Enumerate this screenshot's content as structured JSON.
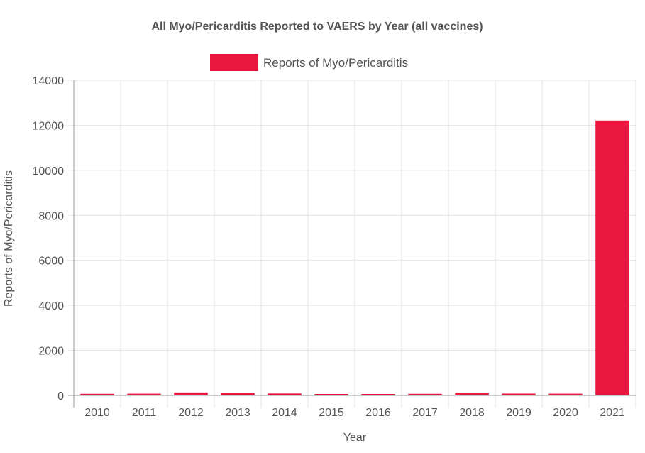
{
  "chart_data": {
    "type": "bar",
    "title": "All Myo/Pericarditis Reported to VAERS by Year (all vaccines)",
    "xlabel": "Year",
    "ylabel": "Reports of Myo/Pericarditis",
    "categories": [
      "2010",
      "2011",
      "2012",
      "2013",
      "2014",
      "2015",
      "2016",
      "2017",
      "2018",
      "2019",
      "2020",
      "2021"
    ],
    "series": [
      {
        "name": "Reports of Myo/Pericarditis",
        "values": [
          70,
          75,
          130,
          110,
          85,
          45,
          60,
          70,
          125,
          80,
          75,
          12210
        ]
      }
    ],
    "ylim": [
      0,
      14000
    ],
    "yticks": [
      "0",
      "2000",
      "4000",
      "6000",
      "8000",
      "10000",
      "12000",
      "14000"
    ],
    "grid": true,
    "legend_position": "top",
    "colors": {
      "bar": "#e8173f",
      "grid": "#e2e2e2",
      "axis": "#999999",
      "text": "#555555"
    }
  }
}
